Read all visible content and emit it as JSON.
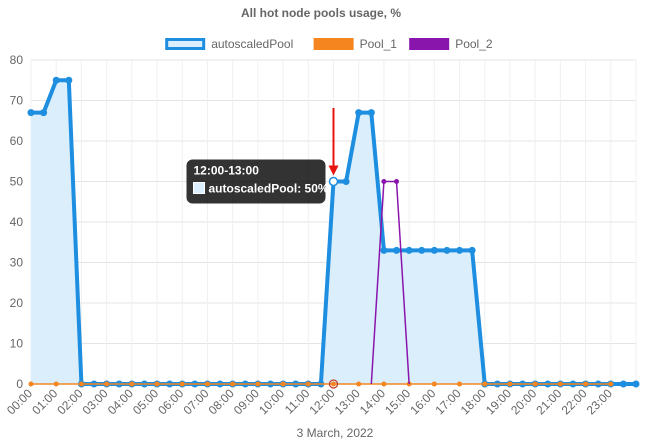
{
  "chart_data": {
    "type": "line",
    "title": "All hot node pools usage, %",
    "xlabel": "3 March, 2022",
    "ylabel": "",
    "ylim": [
      0,
      80
    ],
    "yticks": [
      0,
      10,
      20,
      30,
      40,
      50,
      60,
      70,
      80
    ],
    "grid": true,
    "legend_position": "top",
    "categories": [
      "00:00",
      "01:00",
      "02:00",
      "03:00",
      "04:00",
      "05:00",
      "06:00",
      "07:00",
      "08:00",
      "09:00",
      "10:00",
      "11:00",
      "12:00",
      "13:00",
      "14:00",
      "15:00",
      "16:00",
      "17:00",
      "18:00",
      "19:00",
      "20:00",
      "21:00",
      "22:00",
      "23:00"
    ],
    "series": [
      {
        "name": "autoscaledPool",
        "color": "#1e8ee0",
        "fill": "#dbeefb",
        "style": "bold-area",
        "x": [
          0,
          0.5,
          1,
          1.5,
          2,
          2.5,
          3,
          3.5,
          4,
          4.5,
          5,
          5.5,
          6,
          6.5,
          7,
          7.5,
          8,
          8.5,
          9,
          9.5,
          10,
          10.5,
          11,
          11.5,
          12,
          12.5,
          13,
          13.5,
          14,
          14.5,
          15,
          15.5,
          16,
          16.5,
          17,
          17.5,
          18,
          18.5,
          19,
          19.5,
          20,
          20.5,
          21,
          21.5,
          22,
          22.5,
          23,
          23.5,
          24
        ],
        "values": [
          67,
          67,
          75,
          75,
          0,
          0,
          0,
          0,
          0,
          0,
          0,
          0,
          0,
          0,
          0,
          0,
          0,
          0,
          0,
          0,
          0,
          0,
          0,
          0,
          50,
          50,
          67,
          67,
          33,
          33,
          33,
          33,
          33,
          33,
          33,
          33,
          0,
          0,
          0,
          0,
          0,
          0,
          0,
          0,
          0,
          0,
          0,
          0,
          0
        ]
      },
      {
        "name": "Pool_1",
        "color": "#f5861f",
        "style": "thin-dots",
        "x": [
          0,
          1,
          2,
          3,
          4,
          5,
          6,
          7,
          8,
          9,
          10,
          11,
          12,
          13,
          14,
          15,
          16,
          17,
          18,
          19,
          20,
          21,
          22,
          23
        ],
        "values": [
          0,
          0,
          0,
          0,
          0,
          0,
          0,
          0,
          0,
          0,
          0,
          0,
          0,
          0,
          0,
          0,
          0,
          0,
          0,
          0,
          0,
          0,
          0,
          0
        ]
      },
      {
        "name": "Pool_2",
        "color": "#8a15ad",
        "style": "thin",
        "x": [
          13.5,
          14,
          14.5,
          15
        ],
        "values": [
          0,
          50,
          50,
          0
        ]
      }
    ],
    "tooltip": {
      "title": "12:00-13:00",
      "series": "autoscaledPool",
      "text": "autoscaledPool: 50%",
      "x": 12,
      "value": 50
    },
    "annotation_arrow": {
      "color": "#e8140f",
      "x": 12,
      "value": 50
    }
  }
}
